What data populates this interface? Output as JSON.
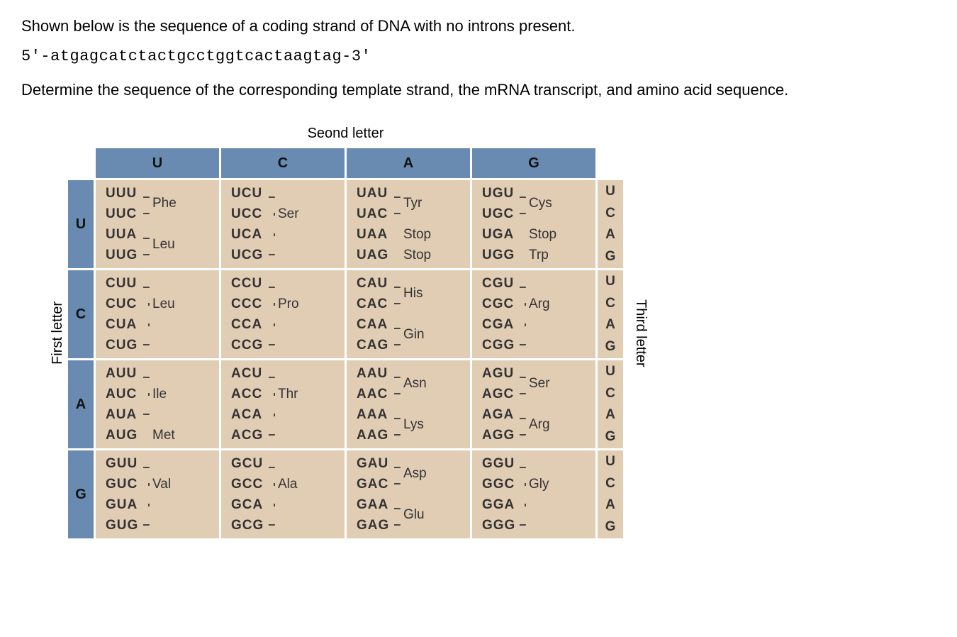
{
  "question": {
    "line1": "Shown below is the sequence of a coding strand of DNA with no introns present.",
    "sequence": "5'-atgagcatctactgcctggtcactaagtag-3'",
    "line2": "Determine the sequence of the corresponding template strand, the mRNA transcript, and amino acid sequence."
  },
  "codon_table": {
    "title_top": "Seond letter",
    "title_left": "First letter",
    "title_right": "Third letter",
    "col_heads": [
      "U",
      "C",
      "A",
      "G"
    ],
    "row_heads": [
      "U",
      "C",
      "A",
      "G"
    ],
    "third_letters": [
      "U",
      "C",
      "A",
      "G"
    ],
    "colors": {
      "header_bg": "#6a8bb1",
      "cell_bg": "#e1ccb4",
      "border": "#ffffff",
      "text": "#333333",
      "bracket": "#4a4a4a"
    },
    "font": {
      "family": "Arial",
      "header_size_pt": 15,
      "body_size_pt": 14,
      "codon_weight": "bold",
      "aa_weight": "normal"
    },
    "cells": {
      "UU": [
        {
          "codon": "UUU",
          "aa": "Phe",
          "aa_row": 0,
          "br": "top"
        },
        {
          "codon": "UUC",
          "aa": "",
          "aa_row": 0,
          "br": "bot"
        },
        {
          "codon": "UUA",
          "aa": "Leu",
          "aa_row": 2,
          "br": "top"
        },
        {
          "codon": "UUG",
          "aa": "",
          "aa_row": 0,
          "br": "bot"
        }
      ],
      "UC": [
        {
          "codon": "UCU",
          "aa": "",
          "aa_row": 0,
          "br": "top"
        },
        {
          "codon": "UCC",
          "aa": "Ser",
          "aa_row": 1,
          "br": "mid"
        },
        {
          "codon": "UCA",
          "aa": "",
          "aa_row": 0,
          "br": "mid"
        },
        {
          "codon": "UCG",
          "aa": "",
          "aa_row": 0,
          "br": "bot"
        }
      ],
      "UA": [
        {
          "codon": "UAU",
          "aa": "Tyr",
          "aa_row": 0,
          "br": "top"
        },
        {
          "codon": "UAC",
          "aa": "",
          "aa_row": 0,
          "br": "bot"
        },
        {
          "codon": "UAA",
          "aa": "Stop",
          "aa_row": 2,
          "br": "none"
        },
        {
          "codon": "UAG",
          "aa": "Stop",
          "aa_row": 3,
          "br": "none"
        }
      ],
      "UG": [
        {
          "codon": "UGU",
          "aa": "Cys",
          "aa_row": 0,
          "br": "top"
        },
        {
          "codon": "UGC",
          "aa": "",
          "aa_row": 0,
          "br": "bot"
        },
        {
          "codon": "UGA",
          "aa": "Stop",
          "aa_row": 2,
          "br": "none"
        },
        {
          "codon": "UGG",
          "aa": "Trp",
          "aa_row": 3,
          "br": "none"
        }
      ],
      "CU": [
        {
          "codon": "CUU",
          "aa": "",
          "aa_row": 0,
          "br": "top"
        },
        {
          "codon": "CUC",
          "aa": "Leu",
          "aa_row": 1,
          "br": "mid"
        },
        {
          "codon": "CUA",
          "aa": "",
          "aa_row": 0,
          "br": "mid"
        },
        {
          "codon": "CUG",
          "aa": "",
          "aa_row": 0,
          "br": "bot"
        }
      ],
      "CC": [
        {
          "codon": "CCU",
          "aa": "",
          "aa_row": 0,
          "br": "top"
        },
        {
          "codon": "CCC",
          "aa": "Pro",
          "aa_row": 1,
          "br": "mid"
        },
        {
          "codon": "CCA",
          "aa": "",
          "aa_row": 0,
          "br": "mid"
        },
        {
          "codon": "CCG",
          "aa": "",
          "aa_row": 0,
          "br": "bot"
        }
      ],
      "CA": [
        {
          "codon": "CAU",
          "aa": "His",
          "aa_row": 0,
          "br": "top"
        },
        {
          "codon": "CAC",
          "aa": "",
          "aa_row": 0,
          "br": "bot"
        },
        {
          "codon": "CAA",
          "aa": "Gin",
          "aa_row": 2,
          "br": "top"
        },
        {
          "codon": "CAG",
          "aa": "",
          "aa_row": 0,
          "br": "bot"
        }
      ],
      "CG": [
        {
          "codon": "CGU",
          "aa": "",
          "aa_row": 0,
          "br": "top"
        },
        {
          "codon": "CGC",
          "aa": "Arg",
          "aa_row": 1,
          "br": "mid"
        },
        {
          "codon": "CGA",
          "aa": "",
          "aa_row": 0,
          "br": "mid"
        },
        {
          "codon": "CGG",
          "aa": "",
          "aa_row": 0,
          "br": "bot"
        }
      ],
      "AU": [
        {
          "codon": "AUU",
          "aa": "",
          "aa_row": 0,
          "br": "top"
        },
        {
          "codon": "AUC",
          "aa": "Ile",
          "aa_row": 1,
          "br": "mid"
        },
        {
          "codon": "AUA",
          "aa": "",
          "aa_row": 0,
          "br": "bot"
        },
        {
          "codon": "AUG",
          "aa": "Met",
          "aa_row": 3,
          "br": "none"
        }
      ],
      "AC": [
        {
          "codon": "ACU",
          "aa": "",
          "aa_row": 0,
          "br": "top"
        },
        {
          "codon": "ACC",
          "aa": "Thr",
          "aa_row": 1,
          "br": "mid"
        },
        {
          "codon": "ACA",
          "aa": "",
          "aa_row": 0,
          "br": "mid"
        },
        {
          "codon": "ACG",
          "aa": "",
          "aa_row": 0,
          "br": "bot"
        }
      ],
      "AA": [
        {
          "codon": "AAU",
          "aa": "Asn",
          "aa_row": 0,
          "br": "top"
        },
        {
          "codon": "AAC",
          "aa": "",
          "aa_row": 0,
          "br": "bot"
        },
        {
          "codon": "AAA",
          "aa": "Lys",
          "aa_row": 2,
          "br": "top"
        },
        {
          "codon": "AAG",
          "aa": "",
          "aa_row": 0,
          "br": "bot"
        }
      ],
      "AG": [
        {
          "codon": "AGU",
          "aa": "Ser",
          "aa_row": 0,
          "br": "top"
        },
        {
          "codon": "AGC",
          "aa": "",
          "aa_row": 0,
          "br": "bot"
        },
        {
          "codon": "AGA",
          "aa": "Arg",
          "aa_row": 2,
          "br": "top"
        },
        {
          "codon": "AGG",
          "aa": "",
          "aa_row": 0,
          "br": "bot"
        }
      ],
      "GU": [
        {
          "codon": "GUU",
          "aa": "",
          "aa_row": 0,
          "br": "top"
        },
        {
          "codon": "GUC",
          "aa": "Val",
          "aa_row": 1,
          "br": "mid"
        },
        {
          "codon": "GUA",
          "aa": "",
          "aa_row": 0,
          "br": "mid"
        },
        {
          "codon": "GUG",
          "aa": "",
          "aa_row": 0,
          "br": "bot"
        }
      ],
      "GC": [
        {
          "codon": "GCU",
          "aa": "",
          "aa_row": 0,
          "br": "top"
        },
        {
          "codon": "GCC",
          "aa": "Ala",
          "aa_row": 1,
          "br": "mid"
        },
        {
          "codon": "GCA",
          "aa": "",
          "aa_row": 0,
          "br": "mid"
        },
        {
          "codon": "GCG",
          "aa": "",
          "aa_row": 0,
          "br": "bot"
        }
      ],
      "GA": [
        {
          "codon": "GAU",
          "aa": "Asp",
          "aa_row": 0,
          "br": "top"
        },
        {
          "codon": "GAC",
          "aa": "",
          "aa_row": 0,
          "br": "bot"
        },
        {
          "codon": "GAA",
          "aa": "Glu",
          "aa_row": 2,
          "br": "top"
        },
        {
          "codon": "GAG",
          "aa": "",
          "aa_row": 0,
          "br": "bot"
        }
      ],
      "GG": [
        {
          "codon": "GGU",
          "aa": "",
          "aa_row": 0,
          "br": "top"
        },
        {
          "codon": "GGC",
          "aa": "Gly",
          "aa_row": 1,
          "br": "mid"
        },
        {
          "codon": "GGA",
          "aa": "",
          "aa_row": 0,
          "br": "mid"
        },
        {
          "codon": "GGG",
          "aa": "",
          "aa_row": 0,
          "br": "bot"
        }
      ]
    }
  }
}
